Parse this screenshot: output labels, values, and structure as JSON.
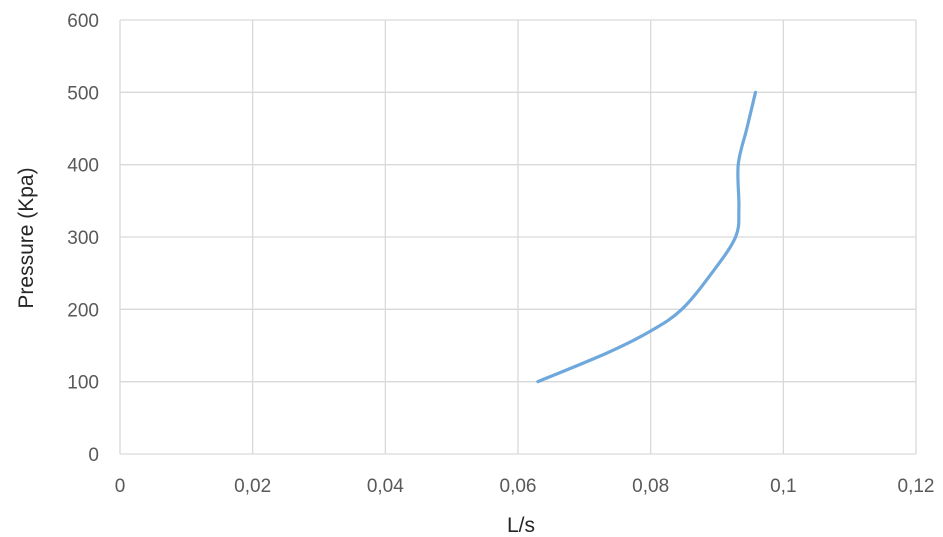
{
  "chart_data": {
    "type": "line",
    "title": "",
    "xlabel": "L/s",
    "ylabel": "Pressure (Kpa)",
    "xlim": [
      0,
      0.12
    ],
    "ylim": [
      0,
      600
    ],
    "x_ticks": [
      0,
      0.02,
      0.04,
      0.06,
      0.08,
      0.1,
      0.12
    ],
    "x_tick_labels": [
      "0",
      "0,02",
      "0,04",
      "0,06",
      "0,08",
      "0,1",
      "0,12"
    ],
    "y_ticks": [
      0,
      100,
      200,
      300,
      400,
      500,
      600
    ],
    "y_tick_labels": [
      "0",
      "100",
      "200",
      "300",
      "400",
      "500",
      "600"
    ],
    "grid": true,
    "legend": "none",
    "series": [
      {
        "color": "#6fa8dc",
        "points": [
          {
            "x": 0.063,
            "y": 100
          },
          {
            "x": 0.0735,
            "y": 140
          },
          {
            "x": 0.08,
            "y": 170
          },
          {
            "x": 0.0847,
            "y": 200
          },
          {
            "x": 0.0892,
            "y": 250
          },
          {
            "x": 0.0928,
            "y": 300
          },
          {
            "x": 0.0933,
            "y": 340
          },
          {
            "x": 0.0932,
            "y": 400
          },
          {
            "x": 0.0945,
            "y": 450
          },
          {
            "x": 0.0958,
            "y": 500
          }
        ]
      }
    ]
  }
}
